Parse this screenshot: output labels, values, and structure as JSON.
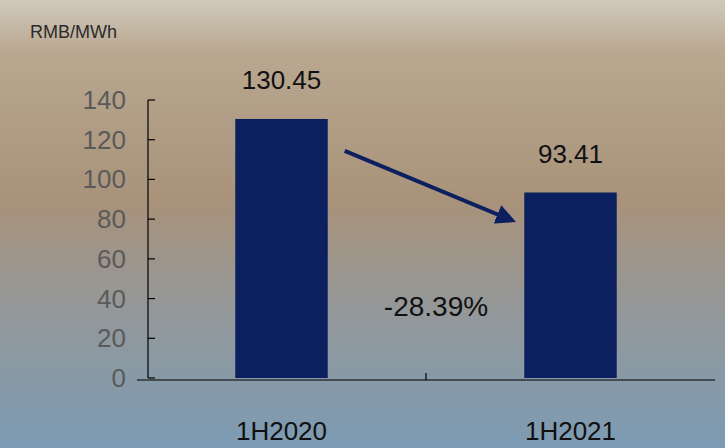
{
  "chart_data": {
    "type": "bar",
    "ylabel": "RMB/MWh",
    "categories": [
      "1H2020",
      "1H2021"
    ],
    "values": [
      130.45,
      93.41
    ],
    "color": "#0c1f5e",
    "ylim": [
      0,
      140
    ],
    "yticks": [
      0,
      20,
      40,
      60,
      80,
      100,
      120,
      140
    ],
    "data_labels": true,
    "grid": false,
    "annotations": [
      {
        "text": "-28.39%"
      }
    ]
  }
}
